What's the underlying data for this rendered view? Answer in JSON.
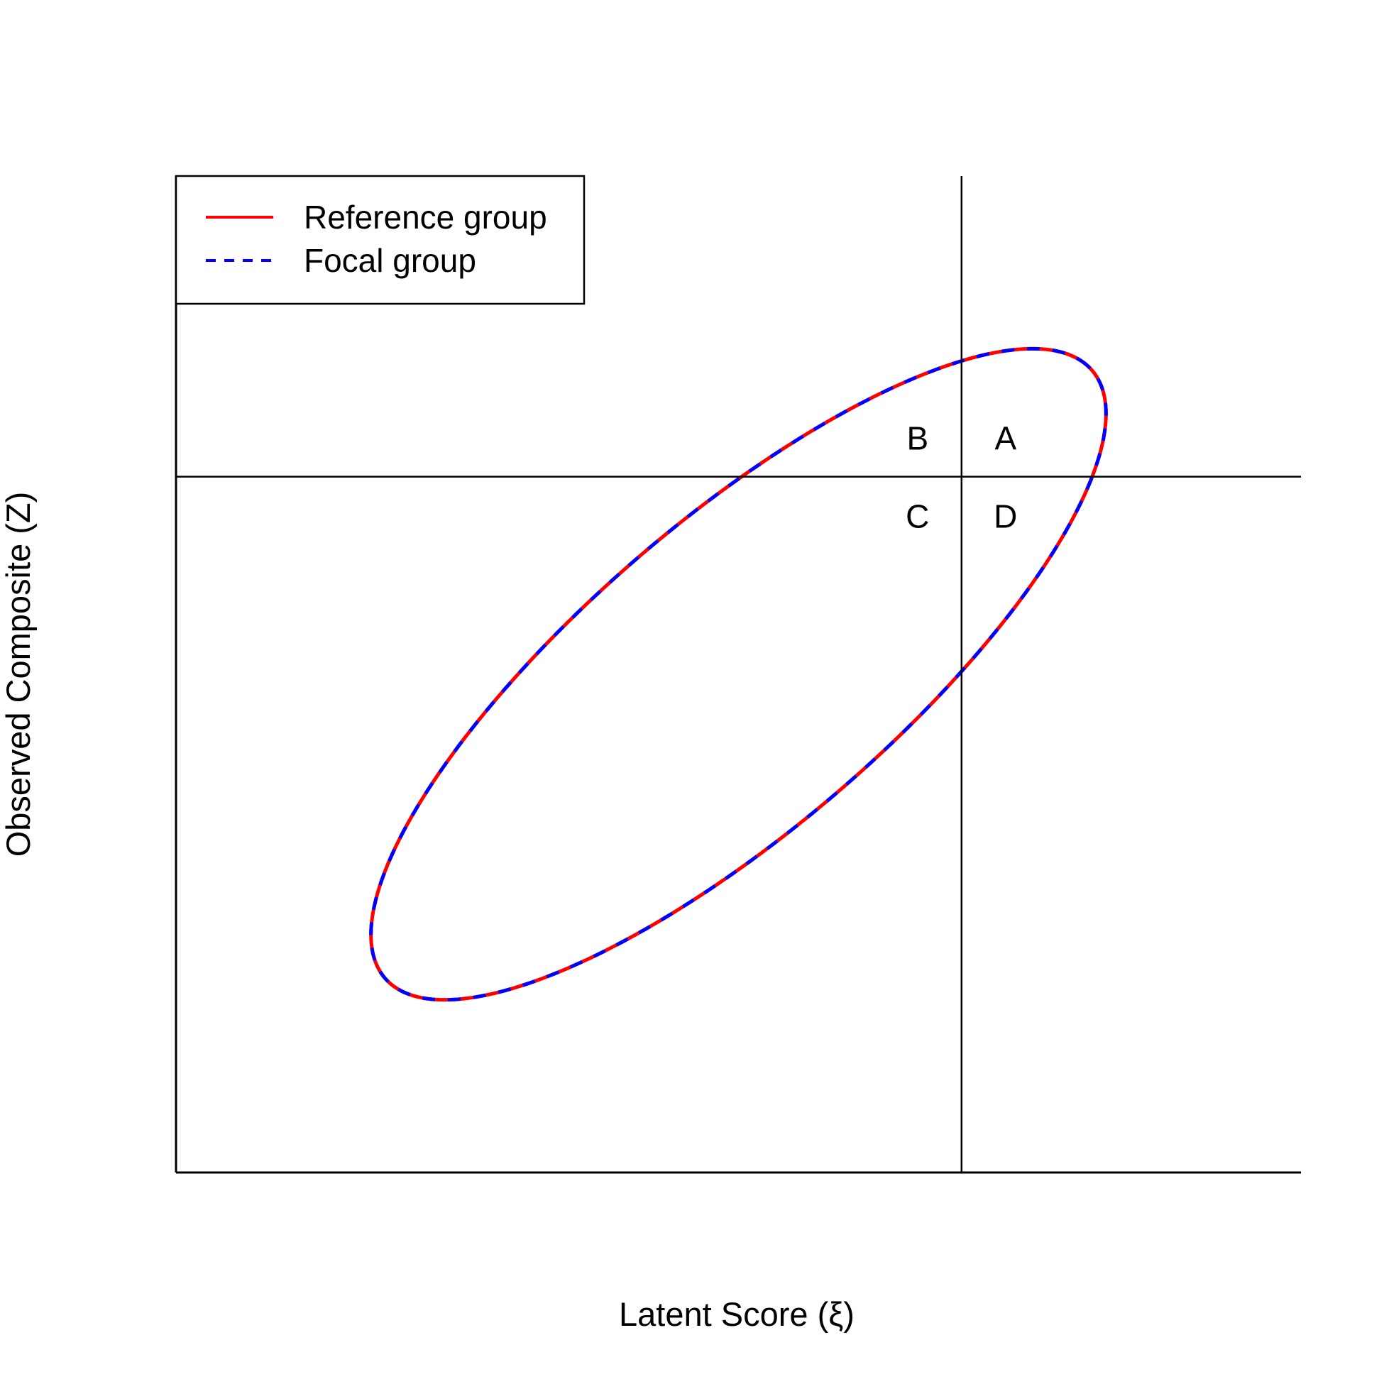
{
  "chart_data": {
    "type": "ellipse-contour",
    "xlabel": "Latent Score (ξ)",
    "ylabel": "Observed Composite (Z)",
    "xlim": [
      -3.52,
      3.52
    ],
    "ylim": [
      -3.52,
      3.52
    ],
    "grid": false,
    "thresholds": {
      "x": 1.396,
      "y": 1.396
    },
    "quadrant_labels": [
      "B",
      "A",
      "C",
      "D"
    ],
    "contour_level": 2.3,
    "series": [
      {
        "name": "Reference group",
        "color": "#ff0000",
        "line_style": "solid",
        "mean": [
          0,
          0
        ],
        "sd": [
          1,
          1
        ],
        "correlation": 0.8
      },
      {
        "name": "Focal group",
        "color": "#0000ff",
        "line_style": "dashed",
        "mean": [
          0,
          0
        ],
        "sd": [
          1,
          1
        ],
        "correlation": 0.8
      }
    ],
    "legend": {
      "position": "top-left"
    }
  }
}
